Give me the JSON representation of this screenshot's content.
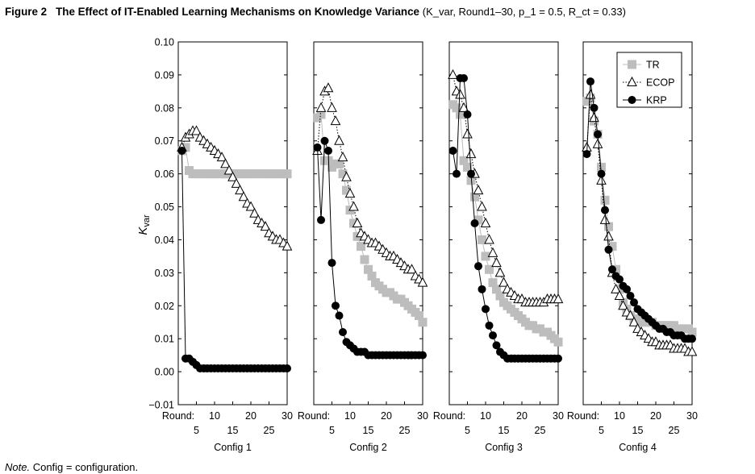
{
  "figure": {
    "number": "Figure 2",
    "title": "The Effect of IT-Enabled Learning Mechanisms on Knowledge Variance",
    "subtitle": "(K_var, Round1–30, p_1 = 0.5, R_ct = 0.33)"
  },
  "note": {
    "label": "Note.",
    "text": "Config = configuration."
  },
  "chart_data": {
    "type": "scatter",
    "ylabel": "K_var",
    "ylim": [
      -0.01,
      0.1
    ],
    "yticks": [
      "−0.01",
      "0.00",
      "0.01",
      "0.02",
      "0.03",
      "0.04",
      "0.05",
      "0.06",
      "0.07",
      "0.08",
      "0.09",
      "0.10"
    ],
    "xlim": [
      0,
      30
    ],
    "xtick_prefix": "Round:",
    "xticks_upper": [
      "10",
      "20",
      "30"
    ],
    "xticks_lower": [
      "5",
      "15",
      "25"
    ],
    "grid": false,
    "legend_position": "top-right of Config 4 panel",
    "legend": [
      {
        "name": "TR",
        "color": "#bdbdbd",
        "marker": "square"
      },
      {
        "name": "ECOP",
        "color": "#000000",
        "marker": "open-triangle"
      },
      {
        "name": "KRP",
        "color": "#000000",
        "marker": "filled-circle"
      }
    ],
    "panels": [
      {
        "xlabel": "Config 1",
        "series": [
          {
            "name": "TR",
            "x": [
              1,
              2,
              3,
              4,
              5,
              6,
              7,
              8,
              9,
              10,
              11,
              12,
              13,
              14,
              15,
              16,
              17,
              18,
              19,
              20,
              21,
              22,
              23,
              24,
              25,
              26,
              27,
              28,
              29,
              30
            ],
            "values": [
              0.067,
              0.068,
              0.061,
              0.06,
              0.06,
              0.06,
              0.06,
              0.06,
              0.06,
              0.06,
              0.06,
              0.06,
              0.06,
              0.06,
              0.06,
              0.06,
              0.06,
              0.06,
              0.06,
              0.06,
              0.06,
              0.06,
              0.06,
              0.06,
              0.06,
              0.06,
              0.06,
              0.06,
              0.06,
              0.06
            ]
          },
          {
            "name": "ECOP",
            "x": [
              1,
              2,
              3,
              4,
              5,
              6,
              7,
              8,
              9,
              10,
              11,
              12,
              13,
              14,
              15,
              16,
              17,
              18,
              19,
              20,
              21,
              22,
              23,
              24,
              25,
              26,
              27,
              28,
              29,
              30
            ],
            "values": [
              0.068,
              0.071,
              0.072,
              0.073,
              0.073,
              0.071,
              0.07,
              0.069,
              0.068,
              0.067,
              0.066,
              0.065,
              0.063,
              0.061,
              0.059,
              0.057,
              0.055,
              0.053,
              0.051,
              0.05,
              0.048,
              0.046,
              0.045,
              0.044,
              0.042,
              0.041,
              0.04,
              0.04,
              0.039,
              0.038
            ]
          },
          {
            "name": "KRP",
            "x": [
              1,
              2,
              3,
              4,
              5,
              6,
              7,
              8,
              9,
              10,
              11,
              12,
              13,
              14,
              15,
              16,
              17,
              18,
              19,
              20,
              21,
              22,
              23,
              24,
              25,
              26,
              27,
              28,
              29,
              30
            ],
            "values": [
              0.067,
              0.004,
              0.004,
              0.003,
              0.002,
              0.001,
              0.001,
              0.001,
              0.001,
              0.001,
              0.001,
              0.001,
              0.001,
              0.001,
              0.001,
              0.001,
              0.001,
              0.001,
              0.001,
              0.001,
              0.001,
              0.001,
              0.001,
              0.001,
              0.001,
              0.001,
              0.001,
              0.001,
              0.001,
              0.001
            ]
          }
        ]
      },
      {
        "xlabel": "Config 2",
        "series": [
          {
            "name": "TR",
            "x": [
              1,
              2,
              3,
              4,
              5,
              6,
              7,
              8,
              9,
              10,
              11,
              12,
              13,
              14,
              15,
              16,
              17,
              18,
              19,
              20,
              21,
              22,
              23,
              24,
              25,
              26,
              27,
              28,
              29,
              30
            ],
            "values": [
              0.077,
              0.078,
              0.064,
              0.064,
              0.062,
              0.063,
              0.063,
              0.06,
              0.055,
              0.049,
              0.045,
              0.041,
              0.038,
              0.034,
              0.031,
              0.029,
              0.027,
              0.026,
              0.025,
              0.024,
              0.024,
              0.023,
              0.022,
              0.022,
              0.021,
              0.02,
              0.019,
              0.018,
              0.017,
              0.015
            ]
          },
          {
            "name": "ECOP",
            "x": [
              1,
              2,
              3,
              4,
              5,
              6,
              7,
              8,
              9,
              10,
              11,
              12,
              13,
              14,
              15,
              16,
              17,
              18,
              19,
              20,
              21,
              22,
              23,
              24,
              25,
              26,
              27,
              28,
              29,
              30
            ],
            "values": [
              0.067,
              0.08,
              0.085,
              0.086,
              0.08,
              0.076,
              0.07,
              0.065,
              0.059,
              0.054,
              0.05,
              0.045,
              0.042,
              0.041,
              0.04,
              0.039,
              0.039,
              0.038,
              0.037,
              0.036,
              0.035,
              0.035,
              0.034,
              0.033,
              0.032,
              0.031,
              0.031,
              0.029,
              0.028,
              0.027
            ]
          },
          {
            "name": "KRP",
            "x": [
              1,
              2,
              3,
              4,
              5,
              6,
              7,
              8,
              9,
              10,
              11,
              12,
              13,
              14,
              15,
              16,
              17,
              18,
              19,
              20,
              21,
              22,
              23,
              24,
              25,
              26,
              27,
              28,
              29,
              30
            ],
            "values": [
              0.068,
              0.046,
              0.07,
              0.067,
              0.033,
              0.02,
              0.017,
              0.012,
              0.009,
              0.008,
              0.007,
              0.006,
              0.006,
              0.006,
              0.005,
              0.005,
              0.005,
              0.005,
              0.005,
              0.005,
              0.005,
              0.005,
              0.005,
              0.005,
              0.005,
              0.005,
              0.005,
              0.005,
              0.005,
              0.005
            ]
          }
        ]
      },
      {
        "xlabel": "Config 3",
        "series": [
          {
            "name": "TR",
            "x": [
              1,
              2,
              3,
              4,
              5,
              6,
              7,
              8,
              9,
              10,
              11,
              12,
              13,
              14,
              15,
              16,
              17,
              18,
              19,
              20,
              21,
              22,
              23,
              24,
              25,
              26,
              27,
              28,
              29,
              30
            ],
            "values": [
              0.081,
              0.08,
              0.078,
              0.064,
              0.062,
              0.058,
              0.053,
              0.046,
              0.04,
              0.035,
              0.031,
              0.027,
              0.025,
              0.023,
              0.021,
              0.02,
              0.019,
              0.018,
              0.017,
              0.016,
              0.015,
              0.014,
              0.014,
              0.013,
              0.013,
              0.012,
              0.012,
              0.011,
              0.01,
              0.009
            ]
          },
          {
            "name": "ECOP",
            "x": [
              1,
              2,
              3,
              4,
              5,
              6,
              7,
              8,
              9,
              10,
              11,
              12,
              13,
              14,
              15,
              16,
              17,
              18,
              19,
              20,
              21,
              22,
              23,
              24,
              25,
              26,
              27,
              28,
              29,
              30
            ],
            "values": [
              0.09,
              0.085,
              0.084,
              0.08,
              0.072,
              0.066,
              0.06,
              0.055,
              0.05,
              0.045,
              0.04,
              0.036,
              0.033,
              0.03,
              0.027,
              0.025,
              0.024,
              0.023,
              0.022,
              0.022,
              0.021,
              0.021,
              0.021,
              0.021,
              0.021,
              0.021,
              0.022,
              0.022,
              0.022,
              0.022
            ]
          },
          {
            "name": "KRP",
            "x": [
              1,
              2,
              3,
              4,
              5,
              6,
              7,
              8,
              9,
              10,
              11,
              12,
              13,
              14,
              15,
              16,
              17,
              18,
              19,
              20,
              21,
              22,
              23,
              24,
              25,
              26,
              27,
              28,
              29,
              30
            ],
            "values": [
              0.067,
              0.06,
              0.089,
              0.089,
              0.078,
              0.06,
              0.045,
              0.032,
              0.025,
              0.019,
              0.014,
              0.011,
              0.008,
              0.006,
              0.005,
              0.004,
              0.004,
              0.004,
              0.004,
              0.004,
              0.004,
              0.004,
              0.004,
              0.004,
              0.004,
              0.004,
              0.004,
              0.004,
              0.004,
              0.004
            ]
          }
        ]
      },
      {
        "xlabel": "Config 4",
        "series": [
          {
            "name": "TR",
            "x": [
              1,
              2,
              3,
              4,
              5,
              6,
              7,
              8,
              9,
              10,
              11,
              12,
              13,
              14,
              15,
              16,
              17,
              18,
              19,
              20,
              21,
              22,
              23,
              24,
              25,
              26,
              27,
              28,
              29,
              30
            ],
            "values": [
              0.082,
              0.083,
              0.076,
              0.072,
              0.062,
              0.052,
              0.044,
              0.038,
              0.031,
              0.025,
              0.021,
              0.019,
              0.017,
              0.016,
              0.016,
              0.015,
              0.015,
              0.015,
              0.015,
              0.014,
              0.014,
              0.014,
              0.014,
              0.014,
              0.014,
              0.013,
              0.013,
              0.013,
              0.013,
              0.012
            ]
          },
          {
            "name": "ECOP",
            "x": [
              1,
              2,
              3,
              4,
              5,
              6,
              7,
              8,
              9,
              10,
              11,
              12,
              13,
              14,
              15,
              16,
              17,
              18,
              19,
              20,
              21,
              22,
              23,
              24,
              25,
              26,
              27,
              28,
              29,
              30
            ],
            "values": [
              0.068,
              0.084,
              0.077,
              0.069,
              0.058,
              0.046,
              0.041,
              0.03,
              0.025,
              0.023,
              0.02,
              0.018,
              0.017,
              0.015,
              0.013,
              0.012,
              0.011,
              0.01,
              0.009,
              0.009,
              0.008,
              0.008,
              0.008,
              0.008,
              0.007,
              0.007,
              0.007,
              0.007,
              0.006,
              0.006
            ]
          },
          {
            "name": "KRP",
            "x": [
              1,
              2,
              3,
              4,
              5,
              6,
              7,
              8,
              9,
              10,
              11,
              12,
              13,
              14,
              15,
              16,
              17,
              18,
              19,
              20,
              21,
              22,
              23,
              24,
              25,
              26,
              27,
              28,
              29,
              30
            ],
            "values": [
              0.066,
              0.088,
              0.08,
              0.072,
              0.06,
              0.049,
              0.037,
              0.031,
              0.029,
              0.028,
              0.026,
              0.025,
              0.023,
              0.021,
              0.019,
              0.018,
              0.017,
              0.016,
              0.015,
              0.014,
              0.013,
              0.013,
              0.012,
              0.012,
              0.011,
              0.011,
              0.011,
              0.01,
              0.01,
              0.01
            ]
          }
        ]
      }
    ]
  }
}
